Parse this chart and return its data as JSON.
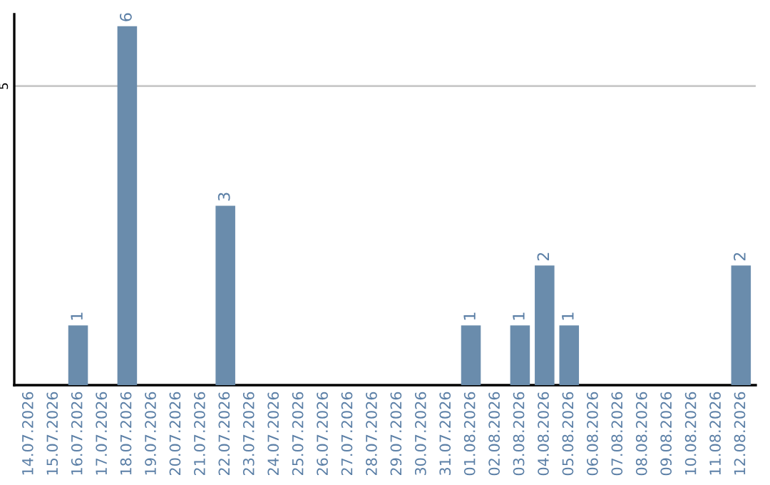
{
  "chart_data": {
    "type": "bar",
    "categories": [
      "14.07.2026",
      "15.07.2026",
      "16.07.2026",
      "17.07.2026",
      "18.07.2026",
      "19.07.2026",
      "20.07.2026",
      "21.07.2026",
      "22.07.2026",
      "23.07.2026",
      "24.07.2026",
      "25.07.2026",
      "26.07.2026",
      "27.07.2026",
      "28.07.2026",
      "29.07.2026",
      "30.07.2026",
      "31.07.2026",
      "01.08.2026",
      "02.08.2026",
      "03.08.2026",
      "04.08.2026",
      "05.08.2026",
      "06.08.2026",
      "07.08.2026",
      "08.08.2026",
      "09.08.2026",
      "10.08.2026",
      "11.08.2026",
      "12.08.2026"
    ],
    "values": [
      0,
      0,
      1,
      0,
      6,
      0,
      0,
      0,
      3,
      0,
      0,
      0,
      0,
      0,
      0,
      0,
      0,
      0,
      1,
      0,
      1,
      2,
      1,
      0,
      0,
      0,
      0,
      0,
      0,
      2
    ],
    "value_labels": [
      null,
      null,
      "1",
      null,
      "6",
      null,
      null,
      null,
      "3",
      null,
      null,
      null,
      null,
      null,
      null,
      null,
      null,
      null,
      "1",
      null,
      "1",
      "2",
      "1",
      null,
      null,
      null,
      null,
      null,
      null,
      "2"
    ],
    "color": "#6a8cac",
    "ylim": [
      0,
      6.2
    ],
    "yticks": [
      5
    ],
    "grid": "y"
  }
}
